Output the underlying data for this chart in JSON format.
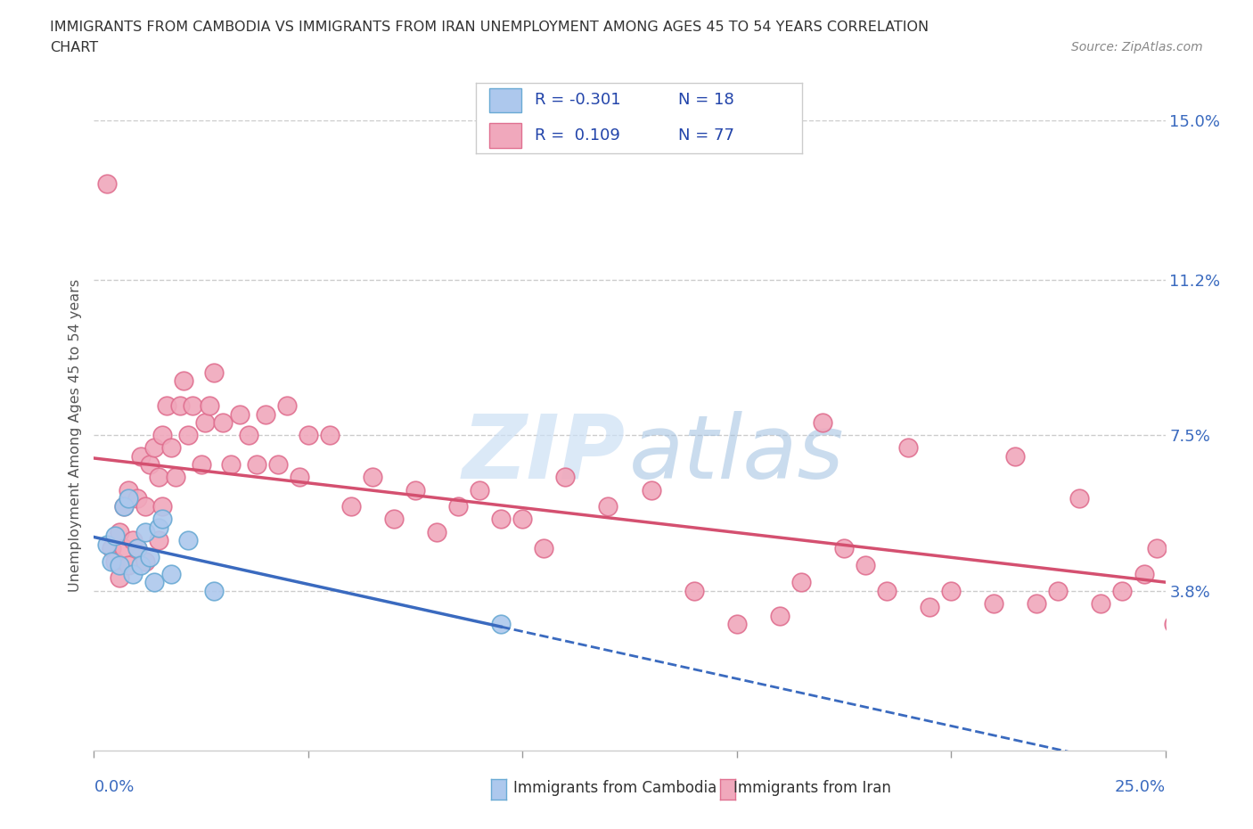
{
  "title_line1": "IMMIGRANTS FROM CAMBODIA VS IMMIGRANTS FROM IRAN UNEMPLOYMENT AMONG AGES 45 TO 54 YEARS CORRELATION",
  "title_line2": "CHART",
  "source_text": "Source: ZipAtlas.com",
  "ylabel": "Unemployment Among Ages 45 to 54 years",
  "xlim": [
    0.0,
    0.25
  ],
  "ylim": [
    0.0,
    0.15
  ],
  "yticks": [
    0.038,
    0.075,
    0.112,
    0.15
  ],
  "ytick_labels": [
    "3.8%",
    "7.5%",
    "11.2%",
    "15.0%"
  ],
  "cambodia_color": "#adc8ed",
  "iran_color": "#f0a8bc",
  "cambodia_edge": "#6aaad4",
  "iran_edge": "#e07090",
  "trend_cambodia_color": "#3a6abf",
  "trend_iran_color": "#d45070",
  "legend_cambodia_color": "#adc8ed",
  "legend_iran_color": "#f0a8bc",
  "watermark_zip_color": "#cce0f5",
  "watermark_atlas_color": "#a0c0e0",
  "cambodia_x": [
    0.003,
    0.004,
    0.005,
    0.006,
    0.007,
    0.008,
    0.009,
    0.01,
    0.011,
    0.012,
    0.013,
    0.014,
    0.015,
    0.016,
    0.018,
    0.022,
    0.028,
    0.095
  ],
  "cambodia_y": [
    0.049,
    0.045,
    0.051,
    0.044,
    0.058,
    0.06,
    0.042,
    0.048,
    0.044,
    0.052,
    0.046,
    0.04,
    0.053,
    0.055,
    0.042,
    0.05,
    0.038,
    0.03
  ],
  "iran_x": [
    0.003,
    0.004,
    0.005,
    0.006,
    0.006,
    0.007,
    0.007,
    0.008,
    0.008,
    0.009,
    0.01,
    0.01,
    0.011,
    0.012,
    0.012,
    0.013,
    0.014,
    0.015,
    0.015,
    0.016,
    0.016,
    0.017,
    0.018,
    0.019,
    0.02,
    0.021,
    0.022,
    0.023,
    0.025,
    0.026,
    0.027,
    0.028,
    0.03,
    0.032,
    0.034,
    0.036,
    0.038,
    0.04,
    0.043,
    0.045,
    0.048,
    0.05,
    0.055,
    0.06,
    0.065,
    0.07,
    0.075,
    0.08,
    0.085,
    0.09,
    0.095,
    0.1,
    0.105,
    0.11,
    0.12,
    0.13,
    0.14,
    0.15,
    0.16,
    0.165,
    0.17,
    0.175,
    0.18,
    0.185,
    0.19,
    0.195,
    0.2,
    0.21,
    0.215,
    0.22,
    0.225,
    0.23,
    0.235,
    0.24,
    0.245,
    0.248,
    0.252
  ],
  "iran_y": [
    0.135,
    0.048,
    0.045,
    0.052,
    0.041,
    0.058,
    0.048,
    0.062,
    0.044,
    0.05,
    0.048,
    0.06,
    0.07,
    0.058,
    0.045,
    0.068,
    0.072,
    0.065,
    0.05,
    0.075,
    0.058,
    0.082,
    0.072,
    0.065,
    0.082,
    0.088,
    0.075,
    0.082,
    0.068,
    0.078,
    0.082,
    0.09,
    0.078,
    0.068,
    0.08,
    0.075,
    0.068,
    0.08,
    0.068,
    0.082,
    0.065,
    0.075,
    0.075,
    0.058,
    0.065,
    0.055,
    0.062,
    0.052,
    0.058,
    0.062,
    0.055,
    0.055,
    0.048,
    0.065,
    0.058,
    0.062,
    0.038,
    0.03,
    0.032,
    0.04,
    0.078,
    0.048,
    0.044,
    0.038,
    0.072,
    0.034,
    0.038,
    0.035,
    0.07,
    0.035,
    0.038,
    0.06,
    0.035,
    0.038,
    0.042,
    0.048,
    0.03
  ],
  "xtick_positions": [
    0.0,
    0.05,
    0.1,
    0.15,
    0.2,
    0.25
  ]
}
